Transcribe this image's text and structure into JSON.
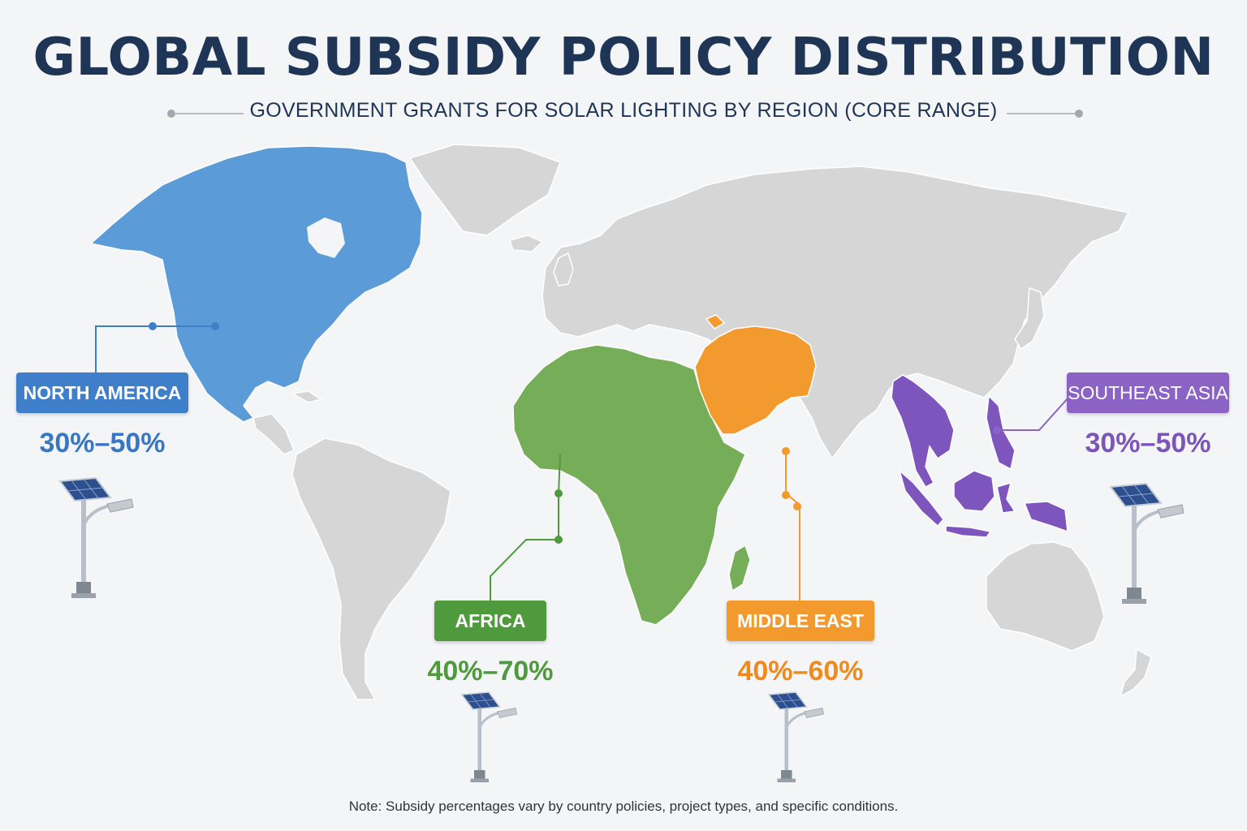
{
  "title": "GLOBAL SUBSIDY POLICY DISTRIBUTION",
  "subtitle": "GOVERNMENT GRANTS FOR SOLAR LIGHTING BY REGION (CORE RANGE)",
  "note": "Note: Subsidy percentages vary by country policies, project types, and specific conditions.",
  "colors": {
    "land": "#d6d6d6",
    "north_america": "#5b9bd8",
    "africa": "#76ad58",
    "middle_east": "#f39a2e",
    "southeast_asia": "#7d55bd"
  },
  "regions": {
    "north_america": {
      "name": "NORTH AMERICA",
      "range": "30%–50%",
      "color": "#3f7ec9",
      "text_color": "#3a77c2"
    },
    "africa": {
      "name": "AFRICA",
      "range": "40%–70%",
      "color": "#4f9a3c",
      "text_color": "#4f9a3c"
    },
    "middle_east": {
      "name": "MIDDLE EAST",
      "range": "40%–60%",
      "color": "#f39a2e",
      "text_color": "#f08a1c"
    },
    "southeast_asia": {
      "name": "SOUTHEAST ASIA",
      "range": "30%–50%",
      "color": "#8a63c4",
      "text_color": "#7b55b8"
    }
  },
  "icons": [
    "solar-street-light-icon"
  ]
}
